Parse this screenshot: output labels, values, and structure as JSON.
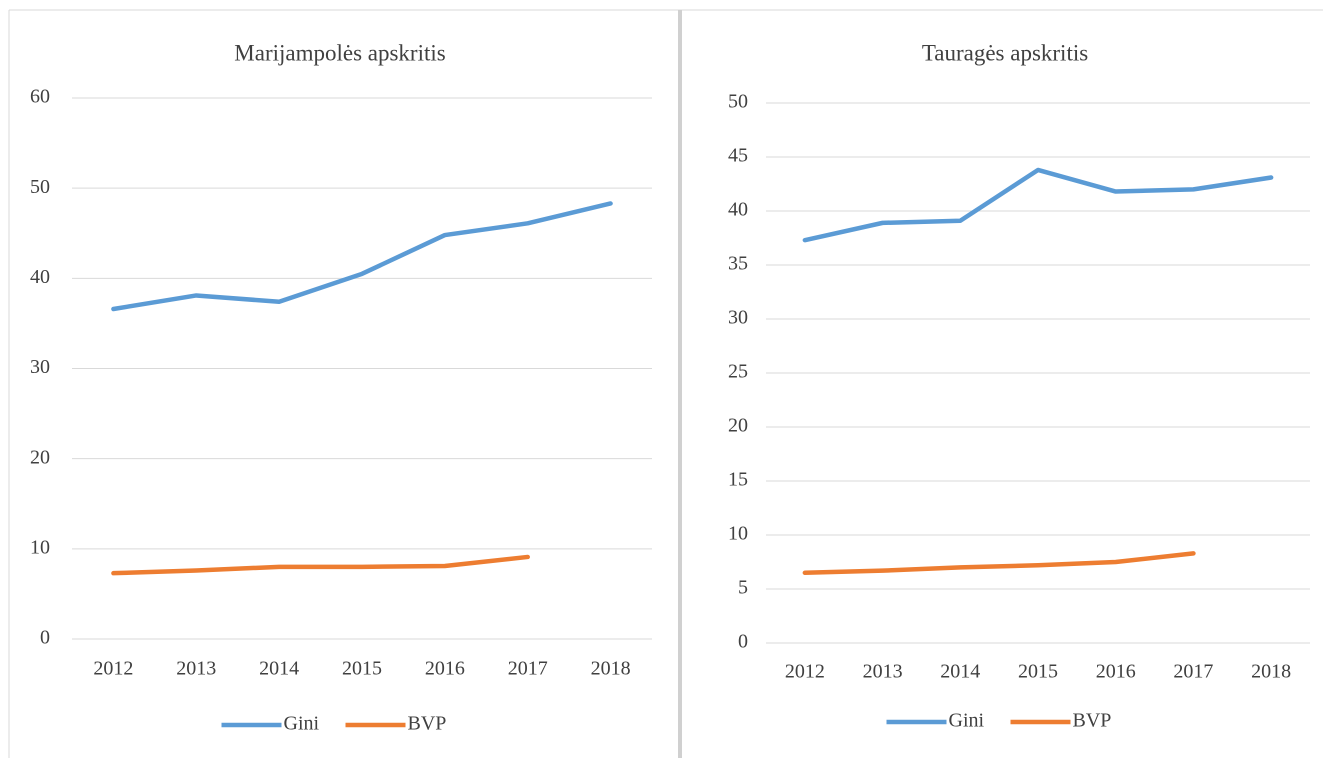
{
  "chart_data": [
    {
      "type": "line",
      "title": "Marijampolės apskritis",
      "categories": [
        "2012",
        "2013",
        "2014",
        "2015",
        "2016",
        "2017",
        "2018"
      ],
      "series": [
        {
          "name": "Gini",
          "color": "#5b9bd5",
          "values": [
            36.6,
            38.1,
            37.4,
            40.5,
            44.8,
            46.1,
            48.3
          ]
        },
        {
          "name": "BVP",
          "color": "#ed7d31",
          "values": [
            7.3,
            7.6,
            8.0,
            8.0,
            8.1,
            9.1,
            null
          ]
        }
      ],
      "ylim": [
        0,
        60
      ],
      "yticks": [
        0,
        10,
        20,
        30,
        40,
        50,
        60
      ],
      "grid": true,
      "legend": "bottom"
    },
    {
      "type": "line",
      "title": "Tauragės apskritis",
      "categories": [
        "2012",
        "2013",
        "2014",
        "2015",
        "2016",
        "2017",
        "2018"
      ],
      "series": [
        {
          "name": "Gini",
          "color": "#5b9bd5",
          "values": [
            37.3,
            38.9,
            39.1,
            43.8,
            41.8,
            42.0,
            43.1
          ]
        },
        {
          "name": "BVP",
          "color": "#ed7d31",
          "values": [
            6.5,
            6.7,
            7.0,
            7.2,
            7.5,
            8.3,
            null
          ]
        }
      ],
      "ylim": [
        0,
        50
      ],
      "yticks": [
        0,
        5,
        10,
        15,
        20,
        25,
        30,
        35,
        40,
        45,
        50
      ],
      "grid": true,
      "legend": "bottom"
    }
  ]
}
